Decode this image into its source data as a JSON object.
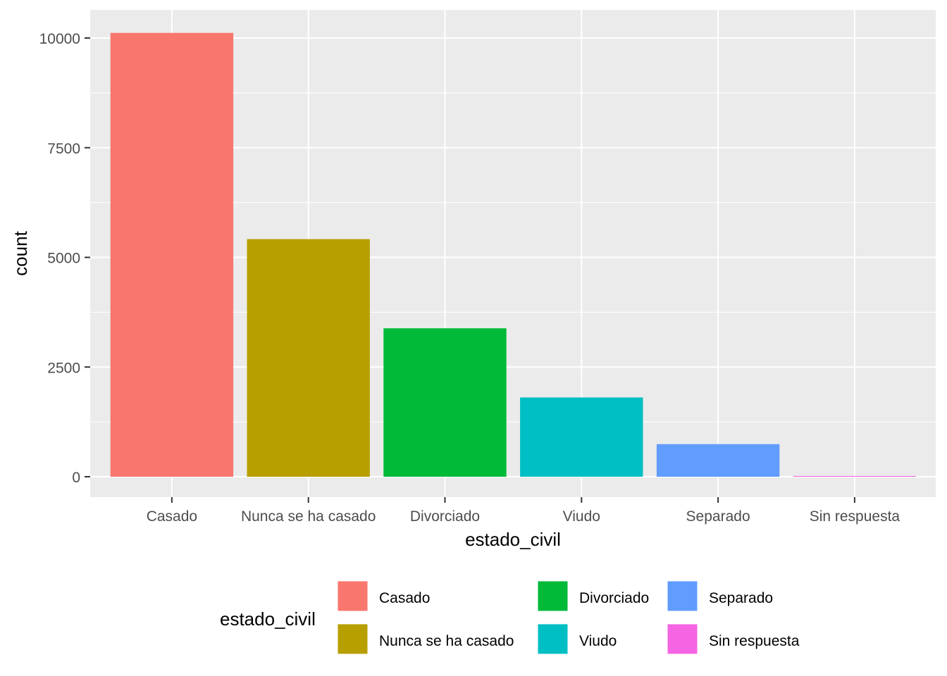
{
  "chart_data": {
    "type": "bar",
    "categories": [
      "Casado",
      "Nunca se ha casado",
      "Divorciado",
      "Viudo",
      "Separado",
      "Sin respuesta"
    ],
    "values": [
      10117,
      5416,
      3383,
      1807,
      743,
      17
    ],
    "colors": [
      "#F8766D",
      "#B79F00",
      "#00BA38",
      "#00BFC4",
      "#619CFF",
      "#F564E3"
    ],
    "xlabel": "estado_civil",
    "ylabel": "count",
    "yticks": [
      0,
      2500,
      5000,
      7500,
      10000
    ],
    "ylim": [
      0,
      10623
    ],
    "grid": true,
    "panel_background": "#EBEBEB",
    "legend": {
      "title": "estado_civil",
      "position": "bottom",
      "items": [
        {
          "label": "Casado",
          "color": "#F8766D"
        },
        {
          "label": "Nunca se ha casado",
          "color": "#B79F00"
        },
        {
          "label": "Divorciado",
          "color": "#00BA38"
        },
        {
          "label": "Viudo",
          "color": "#00BFC4"
        },
        {
          "label": "Separado",
          "color": "#619CFF"
        },
        {
          "label": "Sin respuesta",
          "color": "#F564E3"
        }
      ]
    }
  }
}
